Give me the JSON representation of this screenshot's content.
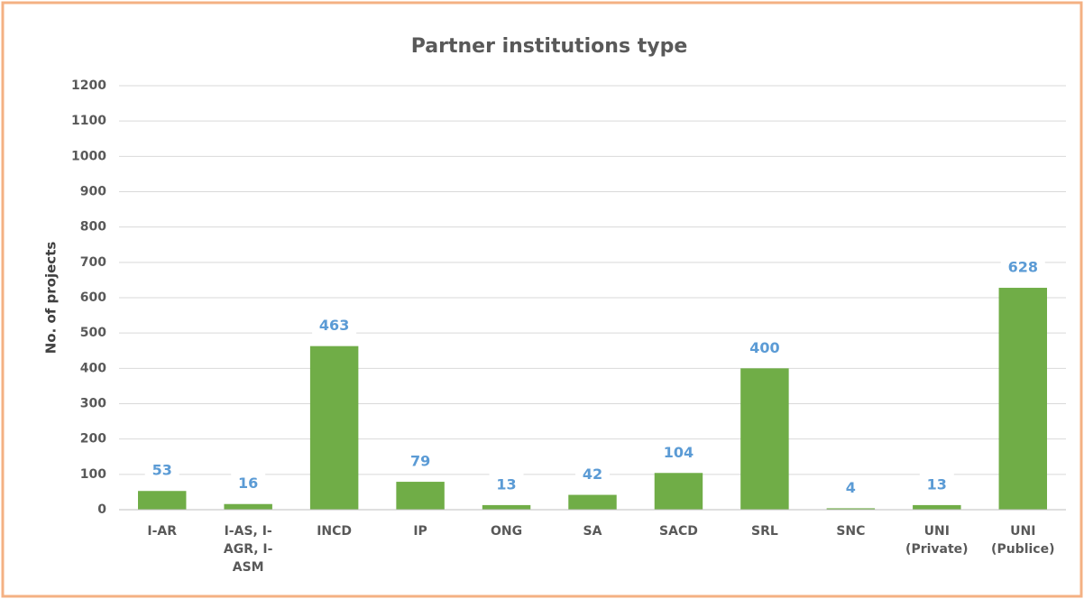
{
  "chart_data": {
    "type": "bar",
    "title": "Partner institutions type",
    "y_label": "No. of projects",
    "categories": [
      "I-AR",
      "I-AS, I-AGR, I-ASM",
      "INCD",
      "IP",
      "ONG",
      "SA",
      "SACD",
      "SRL",
      "SNC",
      "UNI (Private)",
      "UNI (Publice)"
    ],
    "values": [
      53,
      16,
      463,
      79,
      13,
      42,
      104,
      400,
      4,
      13,
      628
    ],
    "color": "#70ad47",
    "label_color": "#5b9bd5",
    "ylim": [
      0,
      1200
    ],
    "yticks": [
      0,
      100,
      200,
      300,
      400,
      500,
      600,
      700,
      800,
      900,
      1000,
      1100,
      1200
    ],
    "grid": true
  }
}
